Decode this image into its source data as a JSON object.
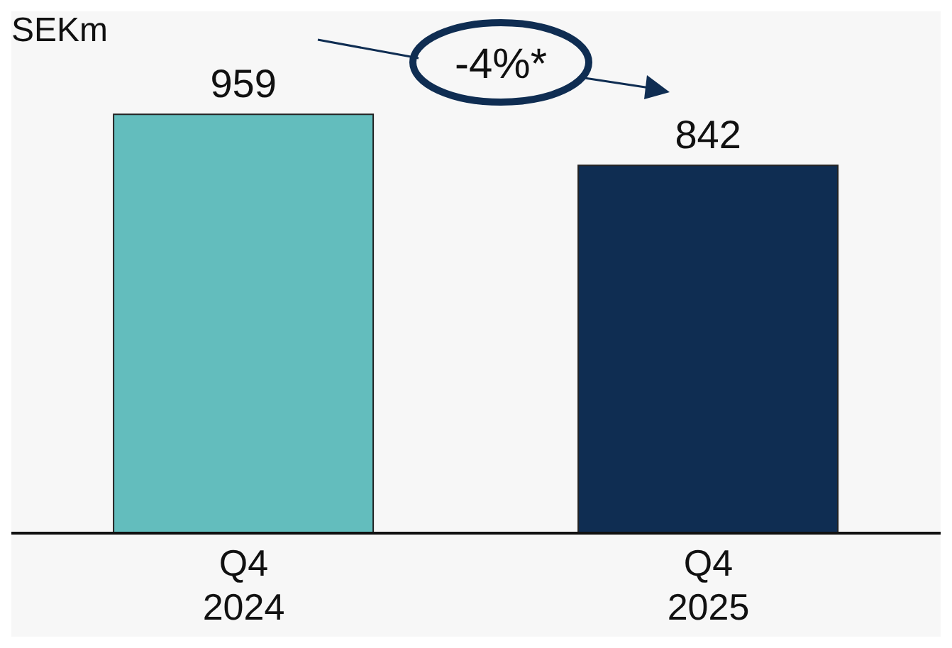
{
  "chart_data": {
    "type": "bar",
    "ylabel": "SEKm",
    "categories": [
      "Q4 2024",
      "Q4 2025"
    ],
    "values": [
      959,
      842
    ],
    "colors": [
      "#63bdbd",
      "#0f2d52"
    ],
    "data_labels": true,
    "annotations": [
      "-4%*"
    ]
  }
}
